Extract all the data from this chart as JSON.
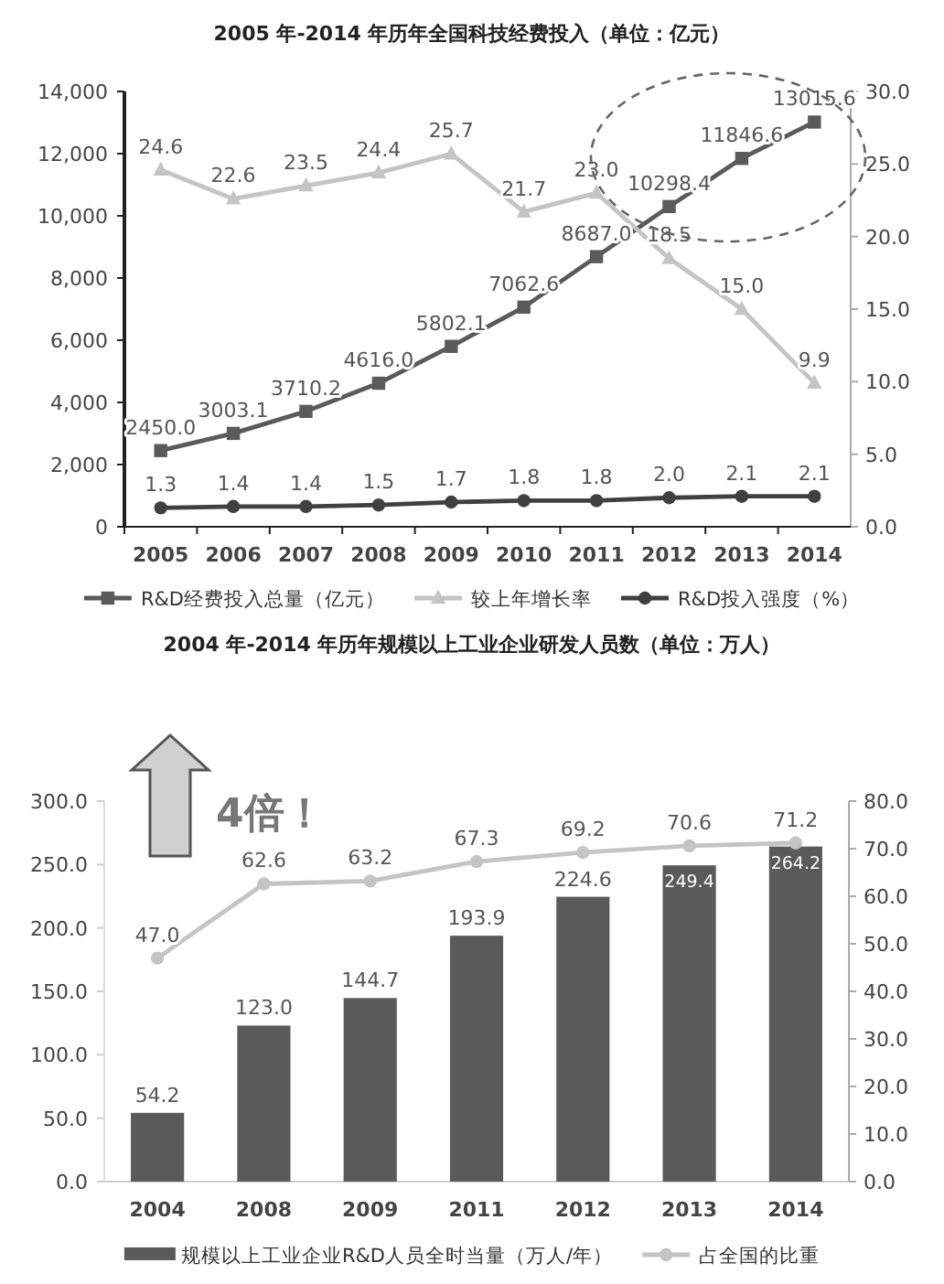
{
  "chart_data": [
    {
      "type": "line",
      "title": "2005 年-2014 年历年全国科技经费投入（单位：亿元）",
      "categories": [
        "2005",
        "2006",
        "2007",
        "2008",
        "2009",
        "2010",
        "2011",
        "2012",
        "2013",
        "2014"
      ],
      "series": [
        {
          "name": "R&D经费投入总量（亿元）",
          "color": "#5a5a5a",
          "marker": "square",
          "values": [
            2450.0,
            3003.1,
            3710.2,
            4616.0,
            5802.1,
            7062.6,
            8687.0,
            10298.4,
            11846.6,
            13015.6
          ],
          "value_labels": [
            "2450.0",
            "3003.1",
            "3710.2",
            "4616.0",
            "5802.1",
            "7062.6",
            "8687.0",
            "10298.4",
            "11846.6",
            "13015.6"
          ]
        },
        {
          "name": "较上年增长率",
          "color": "#c4c4c4",
          "marker": "triangle",
          "axis": "y2",
          "values": [
            24.6,
            22.6,
            23.5,
            24.4,
            25.7,
            21.7,
            23.0,
            18.5,
            15.0,
            9.9
          ],
          "value_labels": [
            "24.6",
            "22.6",
            "23.5",
            "24.4",
            "25.7",
            "21.7",
            "23.0",
            "18.5",
            "15.0",
            "9.9"
          ]
        },
        {
          "name": "R&D投入强度（%）",
          "color": "#404040",
          "marker": "circle",
          "axis": "y2",
          "values": [
            1.3,
            1.4,
            1.4,
            1.5,
            1.7,
            1.8,
            1.8,
            2.0,
            2.1,
            2.1
          ],
          "value_labels": [
            "1.3",
            "1.4",
            "1.4",
            "1.5",
            "1.7",
            "1.8",
            "1.8",
            "2.0",
            "2.1",
            "2.1"
          ]
        }
      ],
      "ylim": [
        0,
        14000
      ],
      "yticks": [
        0,
        {
          "value": 2000,
          "label": "2,000"
        },
        {
          "value": 4000,
          "label": "4,000"
        },
        {
          "value": 6000,
          "label": "6,000"
        },
        {
          "value": 8000,
          "label": "8,000"
        },
        {
          "value": 10000,
          "label": "10,000"
        },
        {
          "value": 12000,
          "label": "12,000"
        },
        {
          "value": 14000,
          "label": "14,000"
        }
      ],
      "y2lim": [
        0,
        30
      ],
      "y2ticks": [
        {
          "value": 0,
          "label": "0.0"
        },
        {
          "value": 5,
          "label": "5.0"
        },
        {
          "value": 10,
          "label": "10.0"
        },
        {
          "value": 15,
          "label": "15.0"
        },
        {
          "value": 20,
          "label": "20.0"
        },
        {
          "value": 25,
          "label": "25.0"
        },
        {
          "value": 30,
          "label": "30.0"
        }
      ],
      "legend": "bottom"
    },
    {
      "type": "bar",
      "title": "2004 年-2014 年历年规模以上工业企业研发人员数（单位：万人）",
      "categories": [
        "2004",
        "2008",
        "2009",
        "2011",
        "2012",
        "2013",
        "2014"
      ],
      "series": [
        {
          "name": "规模以上工业企业R&D人员全时当量（万人/年）",
          "color": "#5a5a5a",
          "values": [
            54.2,
            123.0,
            144.7,
            193.9,
            224.6,
            249.4,
            264.2
          ],
          "value_labels": [
            "54.2",
            "123.0",
            "144.7",
            "193.9",
            "224.6",
            "249.4",
            "264.2"
          ]
        },
        {
          "name": "占全国的比重",
          "type": "line",
          "color": "#c4c4c4",
          "marker": "circle",
          "axis": "y2",
          "values": [
            47.0,
            62.6,
            63.2,
            67.3,
            69.2,
            70.6,
            71.2
          ],
          "value_labels": [
            "47.0",
            "62.6",
            "63.2",
            "67.3",
            "69.2",
            "70.6",
            "71.2"
          ]
        }
      ],
      "ylim": [
        0,
        300
      ],
      "yticks": [
        {
          "value": 0,
          "label": "0.0"
        },
        {
          "value": 50,
          "label": "50.0"
        },
        {
          "value": 100,
          "label": "100.0"
        },
        {
          "value": 150,
          "label": "150.0"
        },
        {
          "value": 200,
          "label": "200.0"
        },
        {
          "value": 250,
          "label": "250.0"
        },
        {
          "value": 300,
          "label": "300.0"
        }
      ],
      "y2lim": [
        0,
        80
      ],
      "y2ticks": [
        {
          "value": 0,
          "label": "0.0"
        },
        {
          "value": 10,
          "label": "10.0"
        },
        {
          "value": 20,
          "label": "20.0"
        },
        {
          "value": 30,
          "label": "30.0"
        },
        {
          "value": 40,
          "label": "40.0"
        },
        {
          "value": 50,
          "label": "50.0"
        },
        {
          "value": 60,
          "label": "60.0"
        },
        {
          "value": 70,
          "label": "70.0"
        },
        {
          "value": 80,
          "label": "80.0"
        }
      ],
      "legend": "bottom",
      "annotations": [
        "4倍！"
      ]
    }
  ]
}
